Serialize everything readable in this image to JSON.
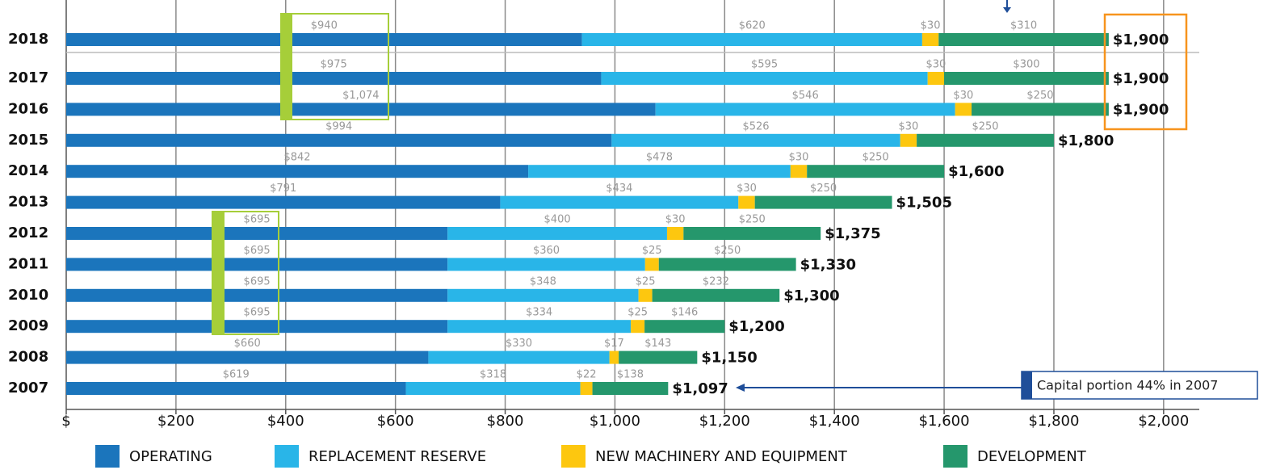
{
  "chart_data": {
    "type": "stacked-bar-horizontal",
    "categories": [
      "2018",
      "2017",
      "2016",
      "2015",
      "2014",
      "2013",
      "2012",
      "2011",
      "2010",
      "2009",
      "2008",
      "2007"
    ],
    "series": [
      {
        "name": "OPERATING",
        "color": "#1b75bc",
        "values": [
          940,
          975,
          1074,
          994,
          842,
          791,
          695,
          695,
          695,
          695,
          660,
          619
        ],
        "value_labels": [
          "$940",
          "$975",
          "$1,074",
          "$994",
          "$842",
          "$791",
          "$695",
          "$695",
          "$695",
          "$695",
          "$660",
          "$619"
        ]
      },
      {
        "name": "REPLACEMENT RESERVE",
        "color": "#29b5e8",
        "values": [
          620,
          595,
          546,
          526,
          478,
          434,
          400,
          360,
          348,
          334,
          330,
          318
        ],
        "value_labels": [
          "$620",
          "$595",
          "$546",
          "$526",
          "$478",
          "$434",
          "$400",
          "$360",
          "$348",
          "$334",
          "$330",
          "$318"
        ]
      },
      {
        "name": "NEW MACHINERY AND EQUIPMENT",
        "color": "#fdc70f",
        "values": [
          30,
          30,
          30,
          30,
          30,
          30,
          30,
          25,
          25,
          25,
          17,
          22
        ],
        "value_labels": [
          "$30",
          "$30",
          "$30",
          "$30",
          "$30",
          "$30",
          "$30",
          "$25",
          "$25",
          "$25",
          "$17",
          "$22"
        ]
      },
      {
        "name": "DEVELOPMENT",
        "color": "#25976c",
        "values": [
          310,
          300,
          250,
          250,
          250,
          250,
          250,
          250,
          232,
          146,
          143,
          138
        ],
        "value_labels": [
          "$310",
          "$300",
          "$250",
          "$250",
          "$250",
          "$250",
          "$250",
          "$250",
          "$232",
          "$146",
          "$143",
          "$138"
        ]
      }
    ],
    "totals": [
      1900,
      1900,
      1900,
      1800,
      1600,
      1505,
      1375,
      1330,
      1300,
      1200,
      1150,
      1097
    ],
    "total_labels": [
      "$1,900",
      "$1,900",
      "$1,900",
      "$1,800",
      "$1,600",
      "$1,505",
      "$1,375",
      "$1,330",
      "$1,300",
      "$1,200",
      "$1,150",
      "$1,097"
    ],
    "xlim": [
      0,
      2065
    ],
    "xticks": [
      {
        "value": 0,
        "label": "$"
      },
      {
        "value": 200,
        "label": "$200"
      },
      {
        "value": 400,
        "label": "$400"
      },
      {
        "value": 600,
        "label": "$600"
      },
      {
        "value": 800,
        "label": "$800"
      },
      {
        "value": 1000,
        "label": "$1,000"
      },
      {
        "value": 1200,
        "label": "$1,200"
      },
      {
        "value": 1400,
        "label": "$1,400"
      },
      {
        "value": 1600,
        "label": "$1,600"
      },
      {
        "value": 1800,
        "label": "$1,800"
      },
      {
        "value": 2000,
        "label": "$2,000"
      }
    ],
    "grid": true,
    "annotation": "Capital portion 44% in 2007"
  }
}
